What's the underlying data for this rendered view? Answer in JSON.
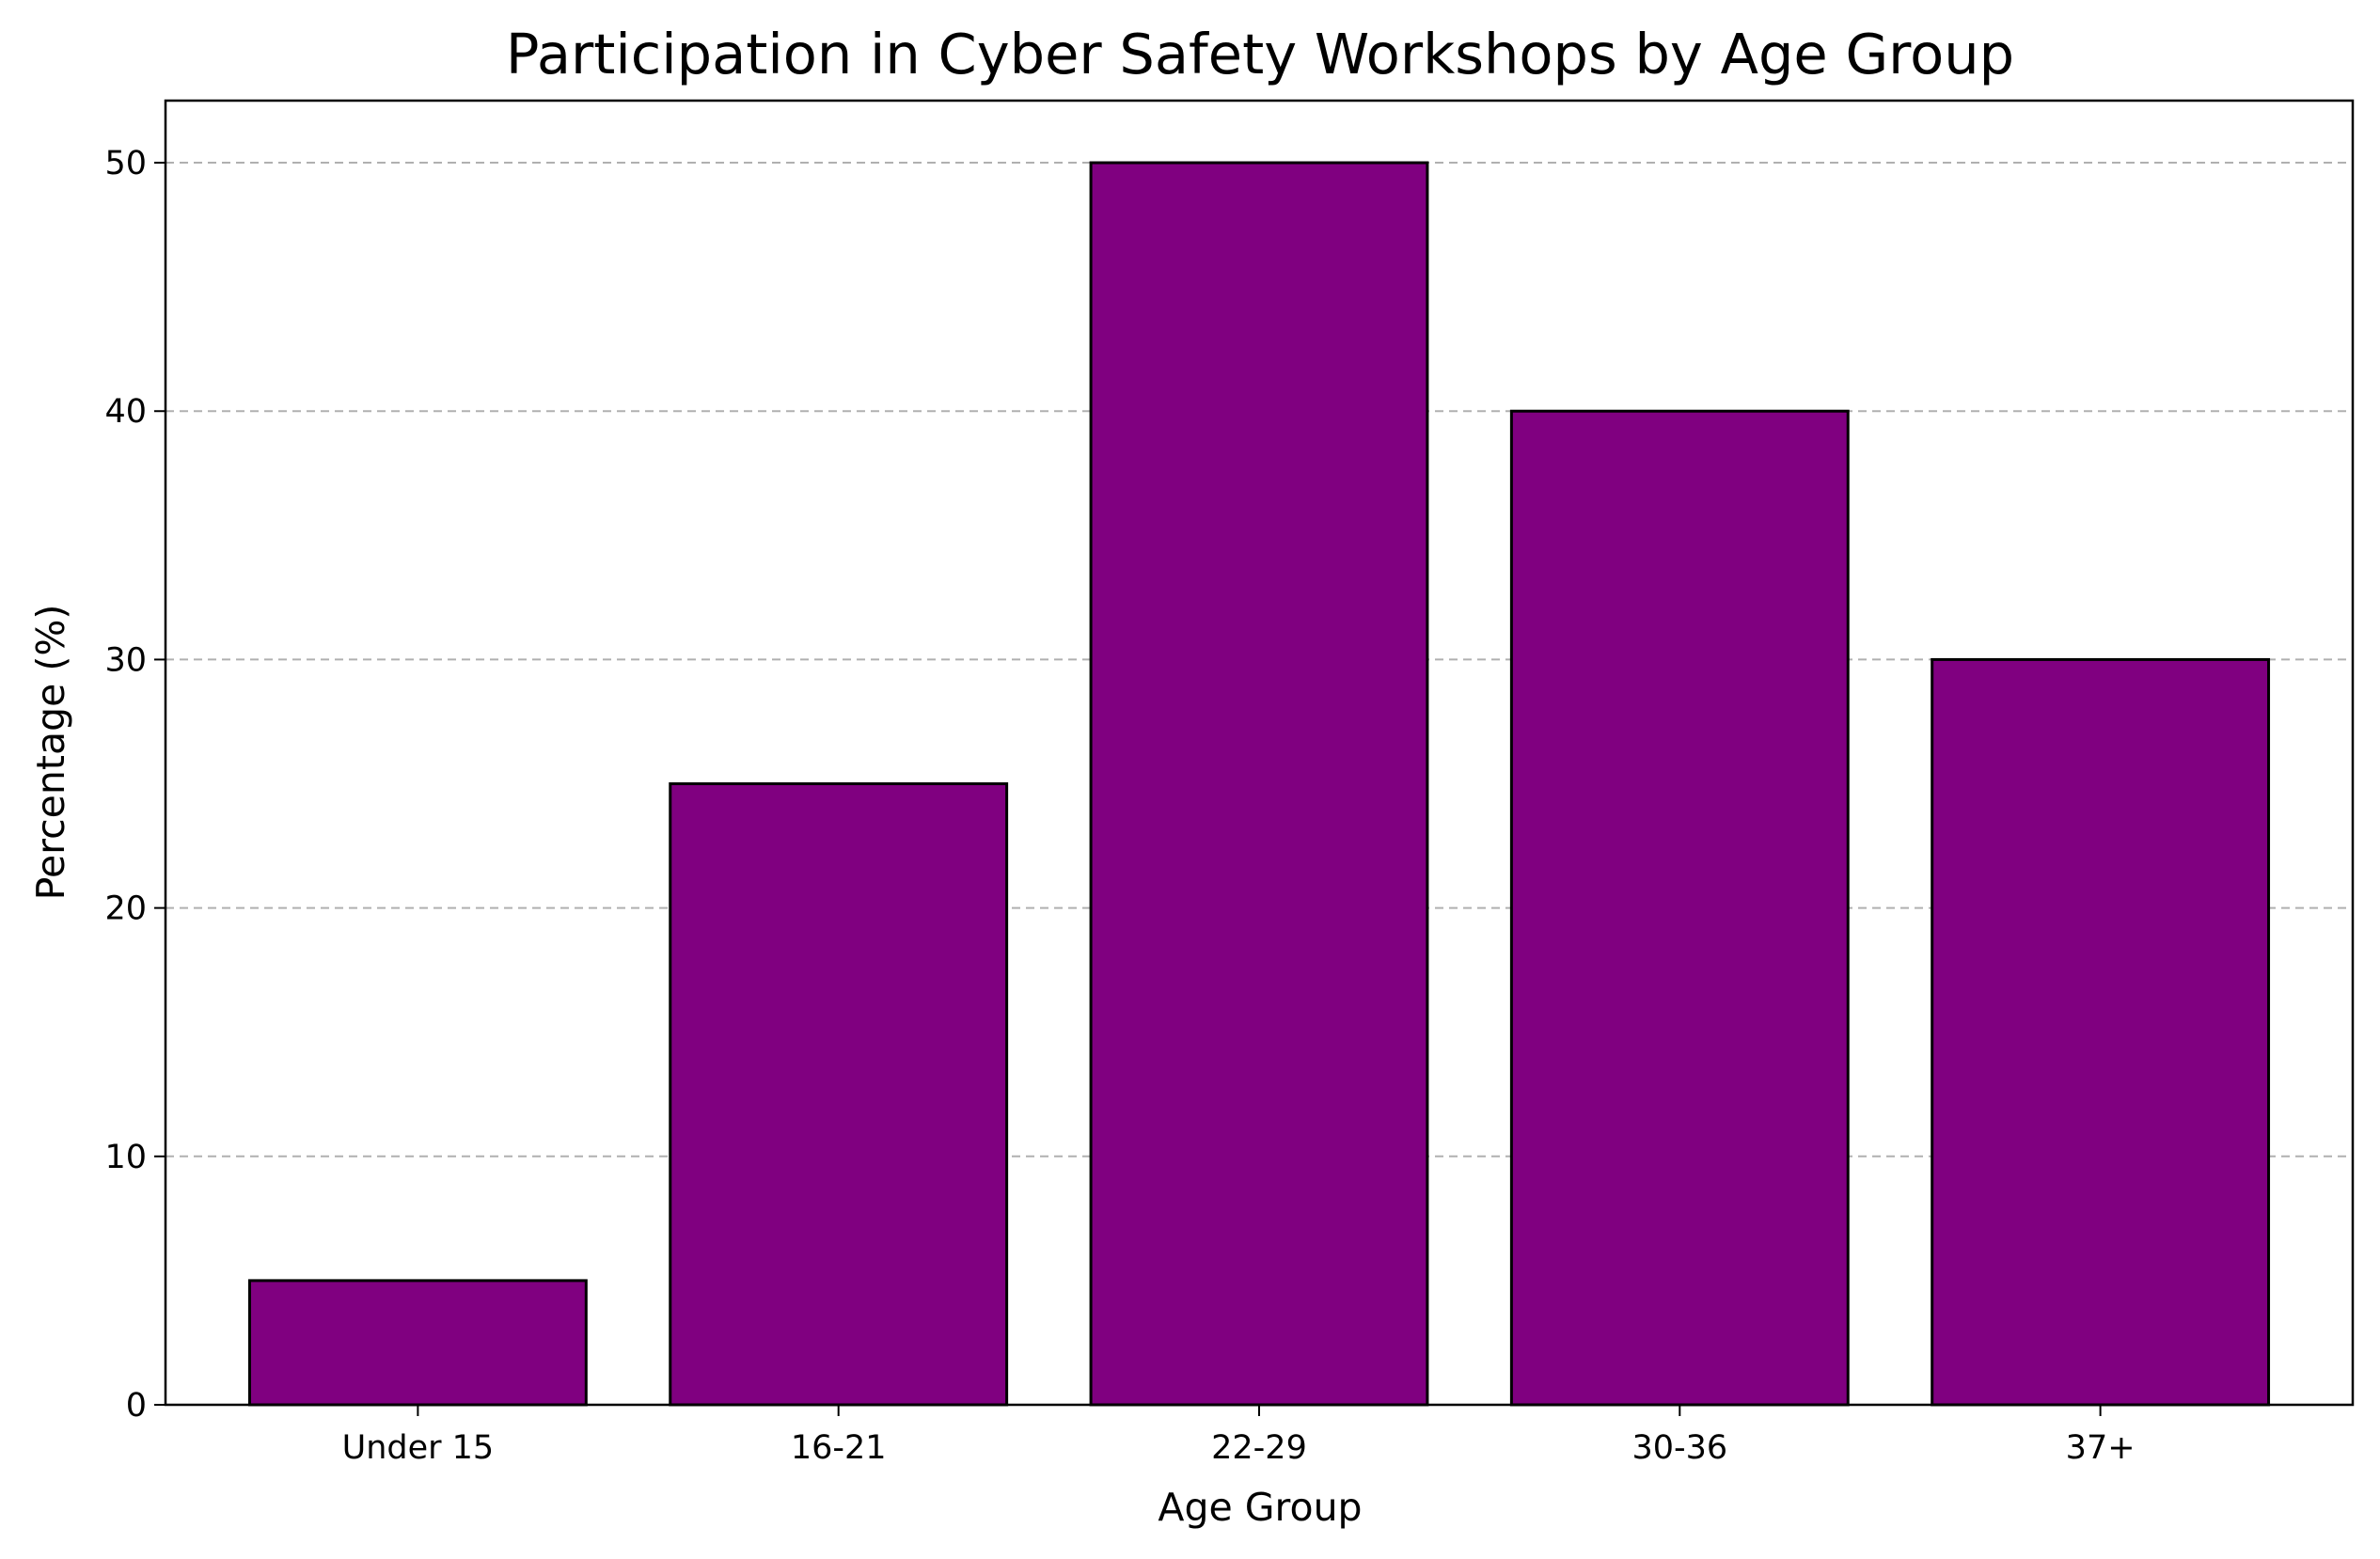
{
  "chart_data": {
    "type": "bar",
    "title": "Participation in Cyber Safety Workshops by Age Group",
    "xlabel": "Age Group",
    "ylabel": "Percentage (%)",
    "categories": [
      "Under 15",
      "16-21",
      "22-29",
      "30-36",
      "37+"
    ],
    "values": [
      5,
      25,
      50,
      40,
      30
    ],
    "ylim": [
      0,
      52.5
    ],
    "yticks": [
      0,
      10,
      20,
      30,
      40,
      50
    ],
    "grid": "y-dashed",
    "legend": "none",
    "bar_color": "#800080",
    "edge_color": "#000000"
  }
}
